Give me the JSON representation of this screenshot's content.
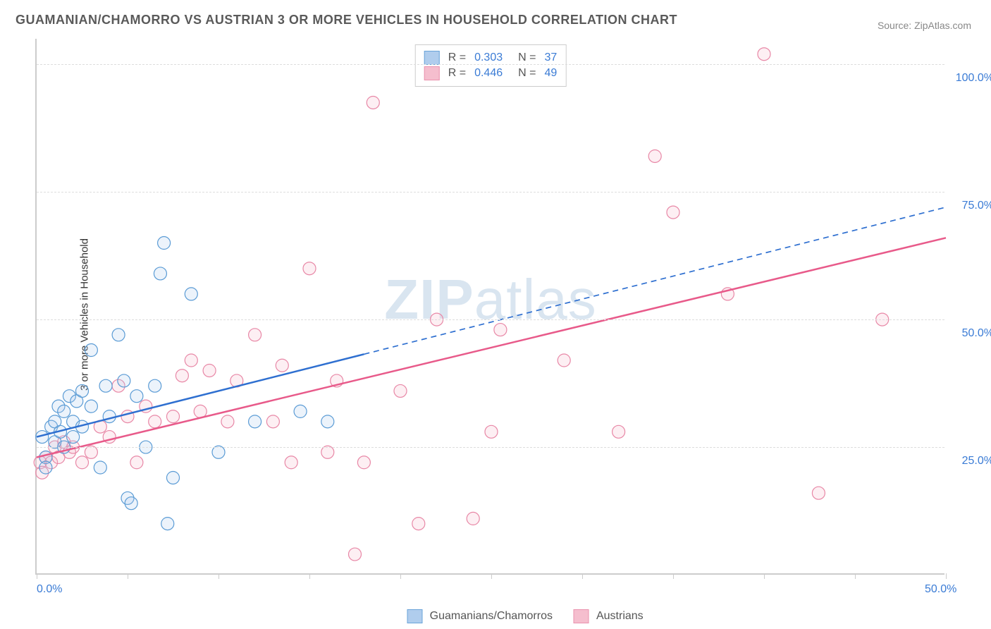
{
  "title": "GUAMANIAN/CHAMORRO VS AUSTRIAN 3 OR MORE VEHICLES IN HOUSEHOLD CORRELATION CHART",
  "source": "Source: ZipAtlas.com",
  "y_axis_title": "3 or more Vehicles in Household",
  "watermark": "ZIPatlas",
  "chart": {
    "type": "scatter",
    "xlim": [
      0,
      50
    ],
    "ylim": [
      0,
      105
    ],
    "x_ticks": [
      0,
      5,
      10,
      15,
      20,
      25,
      30,
      35,
      40,
      45,
      50
    ],
    "x_tick_labels": {
      "0": "0.0%",
      "50": "50.0%"
    },
    "y_grid": [
      25,
      50,
      75,
      100
    ],
    "y_tick_labels": {
      "25": "25.0%",
      "50": "50.0%",
      "75": "75.0%",
      "100": "100.0%"
    },
    "background_color": "#ffffff",
    "grid_color": "#dddddd",
    "marker_radius": 9,
    "marker_stroke_width": 1.2,
    "marker_fill_opacity": 0.22,
    "line_width": 2.5,
    "series": [
      {
        "name": "Guamanians/Chamorros",
        "color_stroke": "#5a9bd5",
        "color_fill": "#a8c8ec",
        "line_color": "#2e6fd0",
        "R": "0.303",
        "N": "37",
        "regression": {
          "x1": 0,
          "y1": 27,
          "x2": 50,
          "y2": 72,
          "solid_until_x": 18
        },
        "points": [
          [
            0.3,
            27
          ],
          [
            0.5,
            23
          ],
          [
            0.5,
            21
          ],
          [
            0.8,
            29
          ],
          [
            1.0,
            26
          ],
          [
            1.0,
            30
          ],
          [
            1.2,
            33
          ],
          [
            1.3,
            28
          ],
          [
            1.5,
            32
          ],
          [
            1.5,
            25
          ],
          [
            1.8,
            35
          ],
          [
            2.0,
            30
          ],
          [
            2.0,
            27
          ],
          [
            2.2,
            34
          ],
          [
            2.5,
            36
          ],
          [
            2.5,
            29
          ],
          [
            3.0,
            44
          ],
          [
            3.0,
            33
          ],
          [
            3.5,
            21
          ],
          [
            3.8,
            37
          ],
          [
            4.0,
            31
          ],
          [
            4.5,
            47
          ],
          [
            4.8,
            38
          ],
          [
            5.0,
            15
          ],
          [
            5.2,
            14
          ],
          [
            5.5,
            35
          ],
          [
            6.0,
            25
          ],
          [
            6.5,
            37
          ],
          [
            6.8,
            59
          ],
          [
            7.0,
            65
          ],
          [
            7.2,
            10
          ],
          [
            7.5,
            19
          ],
          [
            8.5,
            55
          ],
          [
            10.0,
            24
          ],
          [
            12.0,
            30
          ],
          [
            14.5,
            32
          ],
          [
            16.0,
            30
          ]
        ]
      },
      {
        "name": "Austrians",
        "color_stroke": "#e887a6",
        "color_fill": "#f4b8c9",
        "line_color": "#e85a8a",
        "R": "0.446",
        "N": "49",
        "regression": {
          "x1": 0,
          "y1": 23,
          "x2": 50,
          "y2": 66,
          "solid_until_x": 50
        },
        "points": [
          [
            0.2,
            22
          ],
          [
            0.3,
            20
          ],
          [
            0.5,
            23
          ],
          [
            0.8,
            22
          ],
          [
            1.0,
            25
          ],
          [
            1.2,
            23
          ],
          [
            1.5,
            26
          ],
          [
            1.8,
            24
          ],
          [
            2.0,
            25
          ],
          [
            2.5,
            22
          ],
          [
            3.0,
            24
          ],
          [
            3.5,
            29
          ],
          [
            4.0,
            27
          ],
          [
            4.5,
            37
          ],
          [
            5.0,
            31
          ],
          [
            5.5,
            22
          ],
          [
            6.0,
            33
          ],
          [
            6.5,
            30
          ],
          [
            7.5,
            31
          ],
          [
            8.0,
            39
          ],
          [
            8.5,
            42
          ],
          [
            9.0,
            32
          ],
          [
            9.5,
            40
          ],
          [
            10.5,
            30
          ],
          [
            11.0,
            38
          ],
          [
            12.0,
            47
          ],
          [
            13.0,
            30
          ],
          [
            13.5,
            41
          ],
          [
            14.0,
            22
          ],
          [
            15.0,
            60
          ],
          [
            16.0,
            24
          ],
          [
            16.5,
            38
          ],
          [
            17.5,
            4
          ],
          [
            18.0,
            22
          ],
          [
            18.5,
            92.5
          ],
          [
            20.0,
            36
          ],
          [
            21.0,
            10
          ],
          [
            22.0,
            50
          ],
          [
            24.0,
            11
          ],
          [
            25.0,
            28
          ],
          [
            25.5,
            48
          ],
          [
            29.0,
            42
          ],
          [
            32.0,
            28
          ],
          [
            34.0,
            82
          ],
          [
            35.0,
            71
          ],
          [
            38.0,
            55
          ],
          [
            40.0,
            102
          ],
          [
            43.0,
            16
          ],
          [
            46.5,
            50
          ]
        ]
      }
    ]
  },
  "legend_bottom": [
    {
      "label": "Guamanians/Chamorros",
      "series": 0
    },
    {
      "label": "Austrians",
      "series": 1
    }
  ]
}
